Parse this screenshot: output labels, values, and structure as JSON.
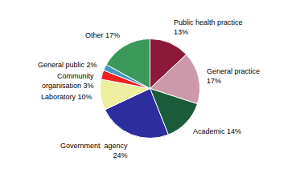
{
  "chart_data": {
    "type": "pie",
    "categories": [
      "Public health practice\n13%",
      "General practice\n17%",
      "Academic 14%",
      "Government  agency\n24%",
      "Laboratory 10%",
      "Community\norganisation 3%",
      "General public 2%",
      "Other 17%"
    ],
    "values": [
      13,
      17,
      14,
      24,
      10,
      3,
      2,
      17
    ],
    "colors": [
      "#8B1A3A",
      "#CC99AA",
      "#1A5C3A",
      "#2B2E9C",
      "#EEEEA0",
      "#EE2222",
      "#4499BB",
      "#3A9A5C"
    ]
  }
}
